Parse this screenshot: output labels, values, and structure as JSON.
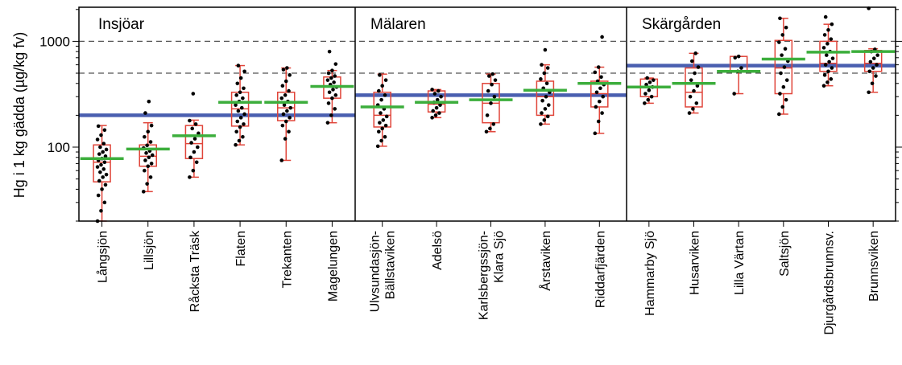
{
  "chart_data": {
    "type": "box",
    "ylabel": "Hg i 1 kg gädda (µg/kg fv)",
    "yscale": "log",
    "ylim": [
      20,
      2100
    ],
    "yticks": [
      100,
      1000
    ],
    "ytick_labels": [
      "100",
      "1000"
    ],
    "reference_lines": [
      500,
      1000
    ],
    "colors": {
      "box": "#e0453a",
      "median_group": "#3cae3c",
      "group_mean": "#4a5fb0",
      "points": "#000000",
      "ref": "#555555"
    },
    "groups": [
      {
        "name": "Insjöar",
        "mean": 200
      },
      {
        "name": "Mälaren",
        "mean": 310
      },
      {
        "name": "Skärgården",
        "mean": 590
      }
    ],
    "sites": [
      {
        "group": 0,
        "label": [
          "Långsjön"
        ],
        "min": 20,
        "q1": 47,
        "median": 72,
        "q3": 105,
        "max": 160,
        "mean": 78,
        "points": [
          20,
          25,
          30,
          35,
          40,
          44,
          48,
          52,
          55,
          58,
          62,
          65,
          68,
          72,
          75,
          78,
          82,
          86,
          90,
          95,
          100,
          108,
          118,
          130,
          145,
          158
        ]
      },
      {
        "group": 0,
        "label": [
          "Lillsjön"
        ],
        "min": 38,
        "q1": 66,
        "median": 82,
        "q3": 105,
        "max": 170,
        "mean": 96,
        "points": [
          38,
          45,
          52,
          60,
          66,
          70,
          75,
          80,
          84,
          88,
          92,
          98,
          104,
          112,
          125,
          140,
          160,
          210,
          270
        ]
      },
      {
        "group": 0,
        "label": [
          "Råcksta Träsk"
        ],
        "min": 52,
        "q1": 78,
        "median": 108,
        "q3": 160,
        "max": 180,
        "mean": 128,
        "points": [
          52,
          60,
          72,
          80,
          90,
          100,
          110,
          120,
          135,
          150,
          165,
          178,
          320
        ]
      },
      {
        "group": 0,
        "label": [
          "Flaten"
        ],
        "min": 105,
        "q1": 158,
        "median": 230,
        "q3": 330,
        "max": 590,
        "mean": 265,
        "points": [
          105,
          115,
          125,
          140,
          155,
          165,
          175,
          190,
          205,
          220,
          235,
          250,
          270,
          290,
          310,
          330,
          360,
          400,
          450,
          520,
          590
        ]
      },
      {
        "group": 0,
        "label": [
          "Trekanten"
        ],
        "min": 75,
        "q1": 178,
        "median": 235,
        "q3": 330,
        "max": 560,
        "mean": 265,
        "points": [
          75,
          120,
          140,
          160,
          175,
          190,
          205,
          220,
          235,
          250,
          270,
          290,
          310,
          340,
          380,
          420,
          480,
          540,
          560
        ]
      },
      {
        "group": 0,
        "label": [
          "Magelungen"
        ],
        "min": 170,
        "q1": 290,
        "median": 370,
        "q3": 460,
        "max": 530,
        "mean": 375,
        "points": [
          170,
          200,
          230,
          260,
          290,
          310,
          330,
          350,
          370,
          390,
          410,
          430,
          450,
          470,
          500,
          530,
          610,
          800
        ]
      },
      {
        "group": 1,
        "label": [
          "Ulvsundasjön-",
          "Bällstaviken"
        ],
        "min": 102,
        "q1": 155,
        "median": 200,
        "q3": 330,
        "max": 490,
        "mean": 240,
        "points": [
          102,
          115,
          125,
          140,
          150,
          160,
          170,
          180,
          195,
          210,
          230,
          250,
          280,
          310,
          340,
          380,
          430,
          480
        ]
      },
      {
        "group": 1,
        "label": [
          "Adelsö"
        ],
        "min": 190,
        "q1": 215,
        "median": 255,
        "q3": 340,
        "max": 350,
        "mean": 265,
        "points": [
          190,
          200,
          210,
          220,
          235,
          250,
          265,
          280,
          300,
          320,
          340,
          350
        ]
      },
      {
        "group": 1,
        "label": [
          "Karlsbergssjön-",
          "Klara Sjö"
        ],
        "min": 140,
        "q1": 170,
        "median": 260,
        "q3": 400,
        "max": 490,
        "mean": 280,
        "points": [
          140,
          150,
          165,
          200,
          260,
          300,
          340,
          390,
          430,
          470,
          490
        ]
      },
      {
        "group": 1,
        "label": [
          "Årstaviken"
        ],
        "min": 165,
        "q1": 200,
        "median": 300,
        "q3": 420,
        "max": 600,
        "mean": 345,
        "points": [
          165,
          180,
          195,
          210,
          230,
          250,
          275,
          300,
          330,
          360,
          400,
          440,
          500,
          560,
          600,
          830
        ]
      },
      {
        "group": 1,
        "label": [
          "Riddarfjärden"
        ],
        "min": 135,
        "q1": 240,
        "median": 320,
        "q3": 420,
        "max": 570,
        "mean": 400,
        "points": [
          135,
          175,
          210,
          240,
          270,
          300,
          330,
          360,
          390,
          420,
          460,
          510,
          570,
          1100
        ]
      },
      {
        "group": 2,
        "label": [
          "Hammarby Sjö"
        ],
        "min": 260,
        "q1": 300,
        "median": 370,
        "q3": 440,
        "max": 450,
        "mean": 370,
        "points": [
          260,
          280,
          300,
          320,
          345,
          370,
          390,
          410,
          430,
          450
        ]
      },
      {
        "group": 2,
        "label": [
          "Husarviken"
        ],
        "min": 210,
        "q1": 240,
        "median": 330,
        "q3": 560,
        "max": 770,
        "mean": 400,
        "points": [
          210,
          230,
          260,
          300,
          340,
          380,
          430,
          500,
          570,
          650,
          770
        ]
      },
      {
        "group": 2,
        "label": [
          "Lilla Värtan"
        ],
        "min": 320,
        "q1": 520,
        "median": 530,
        "q3": 720,
        "max": 720,
        "mean": 520,
        "points": [
          320,
          520,
          560,
          700,
          720
        ]
      },
      {
        "group": 2,
        "label": [
          "Saltsjön"
        ],
        "min": 205,
        "q1": 320,
        "median": 560,
        "q3": 1020,
        "max": 1650,
        "mean": 680,
        "points": [
          205,
          240,
          280,
          320,
          370,
          430,
          500,
          570,
          650,
          740,
          850,
          980,
          1150,
          1350,
          1650
        ]
      },
      {
        "group": 2,
        "label": [
          "Djurgårdsbrunnsv."
        ],
        "min": 380,
        "q1": 520,
        "median": 620,
        "q3": 1000,
        "max": 1450,
        "mean": 790,
        "points": [
          380,
          410,
          440,
          480,
          520,
          560,
          600,
          640,
          690,
          740,
          800,
          870,
          950,
          1050,
          1150,
          1280,
          1450,
          1700
        ]
      },
      {
        "group": 2,
        "label": [
          "Brunnsviken"
        ],
        "min": 330,
        "q1": 520,
        "median": 620,
        "q3": 820,
        "max": 850,
        "mean": 800,
        "points": [
          330,
          400,
          470,
          520,
          560,
          600,
          640,
          690,
          740,
          800,
          840,
          2050
        ]
      }
    ]
  }
}
